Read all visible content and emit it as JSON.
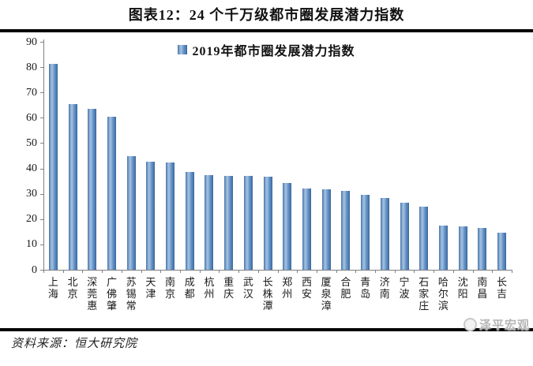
{
  "header": {
    "title": "图表12：24 个千万级都市圈发展潜力指数"
  },
  "footer": {
    "source": "资料来源：恒大研究院",
    "watermark": "泽平宏观"
  },
  "colors": {
    "bar_main": "#4f81bd",
    "bar_highlight": "#a6c2e1",
    "bar_edge_dark": "#3a648f",
    "axis": "#808080",
    "rule": "#000000",
    "watermark_gray": "#b5b5b5"
  },
  "chart_data": {
    "type": "bar",
    "title": "图表12：24 个千万级都市圈发展潜力指数",
    "legend": [
      "2019年都市圈发展潜力指数"
    ],
    "legend_position": "top-center",
    "grid": false,
    "xlabel": "",
    "ylabel": "",
    "ylim": [
      0,
      90
    ],
    "yticks": [
      0,
      10,
      20,
      30,
      40,
      50,
      60,
      70,
      80,
      90
    ],
    "categories": [
      "上海",
      "北京",
      "深莞惠",
      "广佛肇",
      "苏锡常",
      "天津",
      "南京",
      "成都",
      "杭州",
      "重庆",
      "武汉",
      "长株潭",
      "郑州",
      "西安",
      "厦泉漳",
      "合肥",
      "青岛",
      "济南",
      "宁波",
      "石家庄",
      "哈尔滨",
      "沈阳",
      "南昌",
      "长吉"
    ],
    "series": [
      {
        "name": "2019年都市圈发展潜力指数",
        "values": [
          81.3,
          65.4,
          63.6,
          60.3,
          45.0,
          42.8,
          42.5,
          38.7,
          37.5,
          37.1,
          37.0,
          36.8,
          34.2,
          32.1,
          31.9,
          31.0,
          29.5,
          28.2,
          26.4,
          25.0,
          17.4,
          17.1,
          16.4,
          14.6
        ]
      }
    ]
  }
}
